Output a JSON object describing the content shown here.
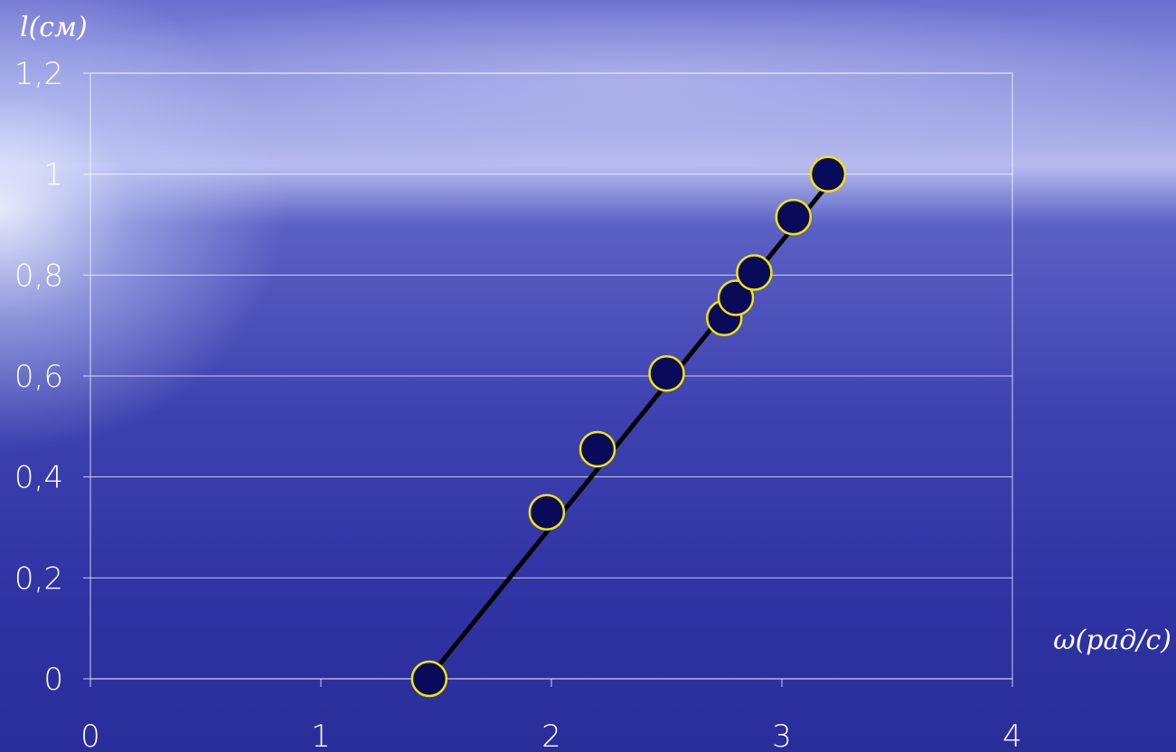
{
  "chart_data": {
    "type": "scatter",
    "ylabel": "l(см)",
    "xlabel": "ω(рад/с)",
    "xlim": [
      0,
      4
    ],
    "ylim": [
      0,
      1.2
    ],
    "x_ticks": [
      "0",
      "1",
      "2",
      "3",
      "4"
    ],
    "y_ticks": [
      "0",
      "0,2",
      "0,4",
      "0,6",
      "0,8",
      "1",
      "1,2"
    ],
    "grid": "horizontal",
    "series": [
      {
        "points": [
          {
            "x": 1.47,
            "y": 0.0
          },
          {
            "x": 1.98,
            "y": 0.33
          },
          {
            "x": 2.2,
            "y": 0.455
          },
          {
            "x": 2.5,
            "y": 0.605
          },
          {
            "x": 2.75,
            "y": 0.715
          },
          {
            "x": 2.8,
            "y": 0.755
          },
          {
            "x": 2.88,
            "y": 0.805
          },
          {
            "x": 3.05,
            "y": 0.915
          },
          {
            "x": 3.2,
            "y": 1.0
          }
        ]
      }
    ],
    "fit_line": {
      "x": [
        1.5,
        3.2
      ],
      "y": [
        0.02,
        0.98
      ]
    },
    "colors": {
      "marker_fill": "#0a0a5a",
      "marker_edge": "#f2e600",
      "line": "#000000",
      "text": "#ffffff"
    }
  }
}
